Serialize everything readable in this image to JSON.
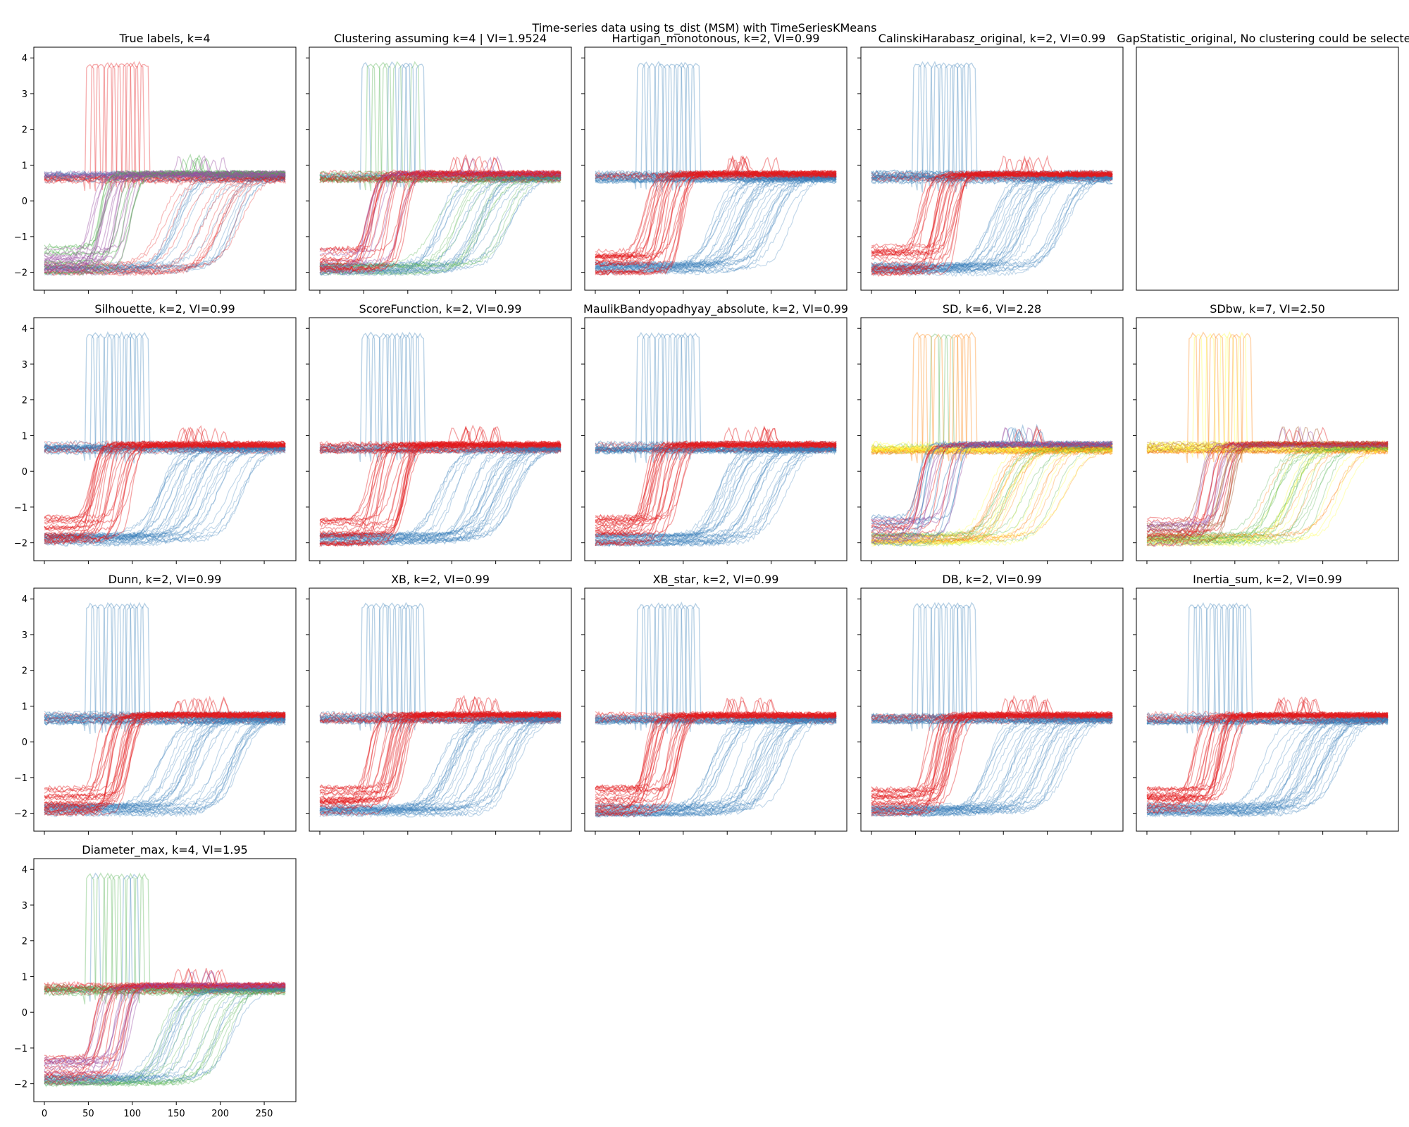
{
  "figure": {
    "title": "Time-series data using ts_dist (MSM) with TimeSeriesKMeans"
  },
  "colors": {
    "red": "#e41a1c",
    "blue": "#377eb8",
    "green": "#4daf4a",
    "purple": "#984ea3",
    "orange": "#ff7f00",
    "yellow": "#ffff33",
    "brown": "#a65628"
  },
  "chart_data": {
    "type": "line",
    "x_ticks": [
      "0",
      "50",
      "100",
      "150",
      "200",
      "250"
    ],
    "y_ticks": [
      "4",
      "3",
      "2",
      "1",
      "0",
      "−1",
      "−2"
    ],
    "xlim": [
      -12,
      286
    ],
    "ylim": [
      -2.5,
      4.3
    ],
    "series_length": 275,
    "ts_shapes": {
      "spike": "flat ~0.65 then narrow spike to ~3.85 at t=50..118",
      "slow_rise": "flat ~-1.3..-2.0 then sigmoid rise to ~0.65 centered t=130..225",
      "fast_rise": "flat ~-1.3..-2.0 then steep rise to ~0.65 centered t=52..100, small bump near t=185"
    },
    "panels": [
      {
        "title": "True labels, k=4",
        "empty": false,
        "colors": {
          "spike": [
            "red"
          ],
          "slow_rise": [
            "red",
            "blue"
          ],
          "fast_rise": [
            "purple",
            "green"
          ],
          "flat": [
            "blue",
            "purple"
          ]
        }
      },
      {
        "title": "Clustering assuming k=4 | VI=1.9524",
        "empty": false,
        "colors": {
          "spike": [
            "blue",
            "green"
          ],
          "slow_rise": [
            "blue",
            "green"
          ],
          "fast_rise": [
            "purple",
            "red"
          ],
          "flat": [
            "green",
            "red"
          ]
        }
      },
      {
        "title": "Hartigan_monotonous, k=2, VI=0.99",
        "empty": false,
        "colors": {
          "spike": [
            "blue"
          ],
          "slow_rise": [
            "blue"
          ],
          "fast_rise": [
            "red"
          ],
          "flat": [
            "blue",
            "red"
          ]
        }
      },
      {
        "title": "CalinskiHarabasz_original, k=2, VI=0.99",
        "empty": false,
        "colors": {
          "spike": [
            "blue"
          ],
          "slow_rise": [
            "blue"
          ],
          "fast_rise": [
            "red"
          ],
          "flat": [
            "blue",
            "red"
          ]
        }
      },
      {
        "title": "GapStatistic_original, No clustering could be selected",
        "empty": true
      },
      {
        "title": "Silhouette, k=2, VI=0.99",
        "empty": false,
        "colors": {
          "spike": [
            "blue"
          ],
          "slow_rise": [
            "blue"
          ],
          "fast_rise": [
            "red"
          ],
          "flat": [
            "blue",
            "red"
          ]
        }
      },
      {
        "title": "ScoreFunction, k=2, VI=0.99",
        "empty": false,
        "colors": {
          "spike": [
            "blue"
          ],
          "slow_rise": [
            "blue"
          ],
          "fast_rise": [
            "red"
          ],
          "flat": [
            "blue",
            "red"
          ]
        }
      },
      {
        "title": "MaulikBandyopadhyay_absolute, k=2, VI=0.99",
        "empty": false,
        "colors": {
          "spike": [
            "blue"
          ],
          "slow_rise": [
            "blue"
          ],
          "fast_rise": [
            "red"
          ],
          "flat": [
            "blue",
            "red"
          ]
        }
      },
      {
        "title": "SD, k=6, VI=2.28",
        "empty": false,
        "colors": {
          "spike": [
            "green",
            "orange"
          ],
          "slow_rise": [
            "green",
            "orange",
            "yellow"
          ],
          "fast_rise": [
            "purple",
            "blue",
            "red"
          ],
          "flat": [
            "yellow",
            "orange"
          ]
        }
      },
      {
        "title": "SDbw, k=7, VI=2.50",
        "empty": false,
        "colors": {
          "spike": [
            "orange",
            "yellow"
          ],
          "slow_rise": [
            "orange",
            "green",
            "yellow"
          ],
          "fast_rise": [
            "purple",
            "brown",
            "red"
          ],
          "flat": [
            "yellow",
            "brown"
          ]
        }
      },
      {
        "title": "Dunn, k=2, VI=0.99",
        "empty": false,
        "colors": {
          "spike": [
            "blue"
          ],
          "slow_rise": [
            "blue"
          ],
          "fast_rise": [
            "red"
          ],
          "flat": [
            "blue",
            "red"
          ]
        }
      },
      {
        "title": "XB, k=2, VI=0.99",
        "empty": false,
        "colors": {
          "spike": [
            "blue"
          ],
          "slow_rise": [
            "blue"
          ],
          "fast_rise": [
            "red"
          ],
          "flat": [
            "blue",
            "red"
          ]
        }
      },
      {
        "title": "XB_star, k=2, VI=0.99",
        "empty": false,
        "colors": {
          "spike": [
            "blue"
          ],
          "slow_rise": [
            "blue"
          ],
          "fast_rise": [
            "red"
          ],
          "flat": [
            "blue",
            "red"
          ]
        }
      },
      {
        "title": "DB, k=2, VI=0.99",
        "empty": false,
        "colors": {
          "spike": [
            "blue"
          ],
          "slow_rise": [
            "blue"
          ],
          "fast_rise": [
            "red"
          ],
          "flat": [
            "blue",
            "red"
          ]
        }
      },
      {
        "title": "Inertia_sum, k=2, VI=0.99",
        "empty": false,
        "colors": {
          "spike": [
            "blue"
          ],
          "slow_rise": [
            "blue"
          ],
          "fast_rise": [
            "red"
          ],
          "flat": [
            "blue",
            "red"
          ]
        }
      },
      {
        "title": "Diameter_max, k=4, VI=1.95",
        "empty": false,
        "colors": {
          "spike": [
            "blue",
            "green"
          ],
          "slow_rise": [
            "blue",
            "green"
          ],
          "fast_rise": [
            "purple",
            "red"
          ],
          "flat": [
            "green",
            "red"
          ]
        }
      }
    ]
  }
}
